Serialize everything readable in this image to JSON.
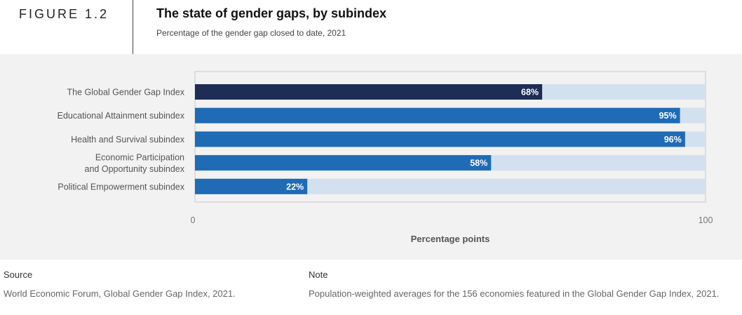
{
  "figure_label": "FIGURE 1.2",
  "title": "The state of gender gaps, by subindex",
  "subtitle": "Percentage of the gender gap closed to date, 2021",
  "chart_data": {
    "type": "bar",
    "orientation": "horizontal",
    "categories": [
      [
        "The Global Gender Gap Index"
      ],
      [
        "Educational Attainment subindex"
      ],
      [
        "Health and Survival subindex"
      ],
      [
        "Economic Participation",
        "and Opportunity subindex"
      ],
      [
        "Political Empowerment subindex"
      ]
    ],
    "values": [
      68,
      95,
      96,
      58,
      22
    ],
    "value_labels": [
      "68%",
      "95%",
      "96%",
      "58%",
      "22%"
    ],
    "xlim": [
      0,
      100
    ],
    "xticks": [
      "0",
      "100"
    ],
    "xlabel": "Percentage points",
    "colors": {
      "highlight": "#1d2d55",
      "bar": "#1f6bb5",
      "track": "#d3e0ef",
      "frame": "#c8c8c8"
    }
  },
  "footer": {
    "source_heading": "Source",
    "source_text": "World Economic Forum, Global Gender Gap Index, 2021.",
    "note_heading": "Note",
    "note_text": "Population-weighted averages for the 156 economies featured in the Global Gender Gap Index, 2021."
  }
}
